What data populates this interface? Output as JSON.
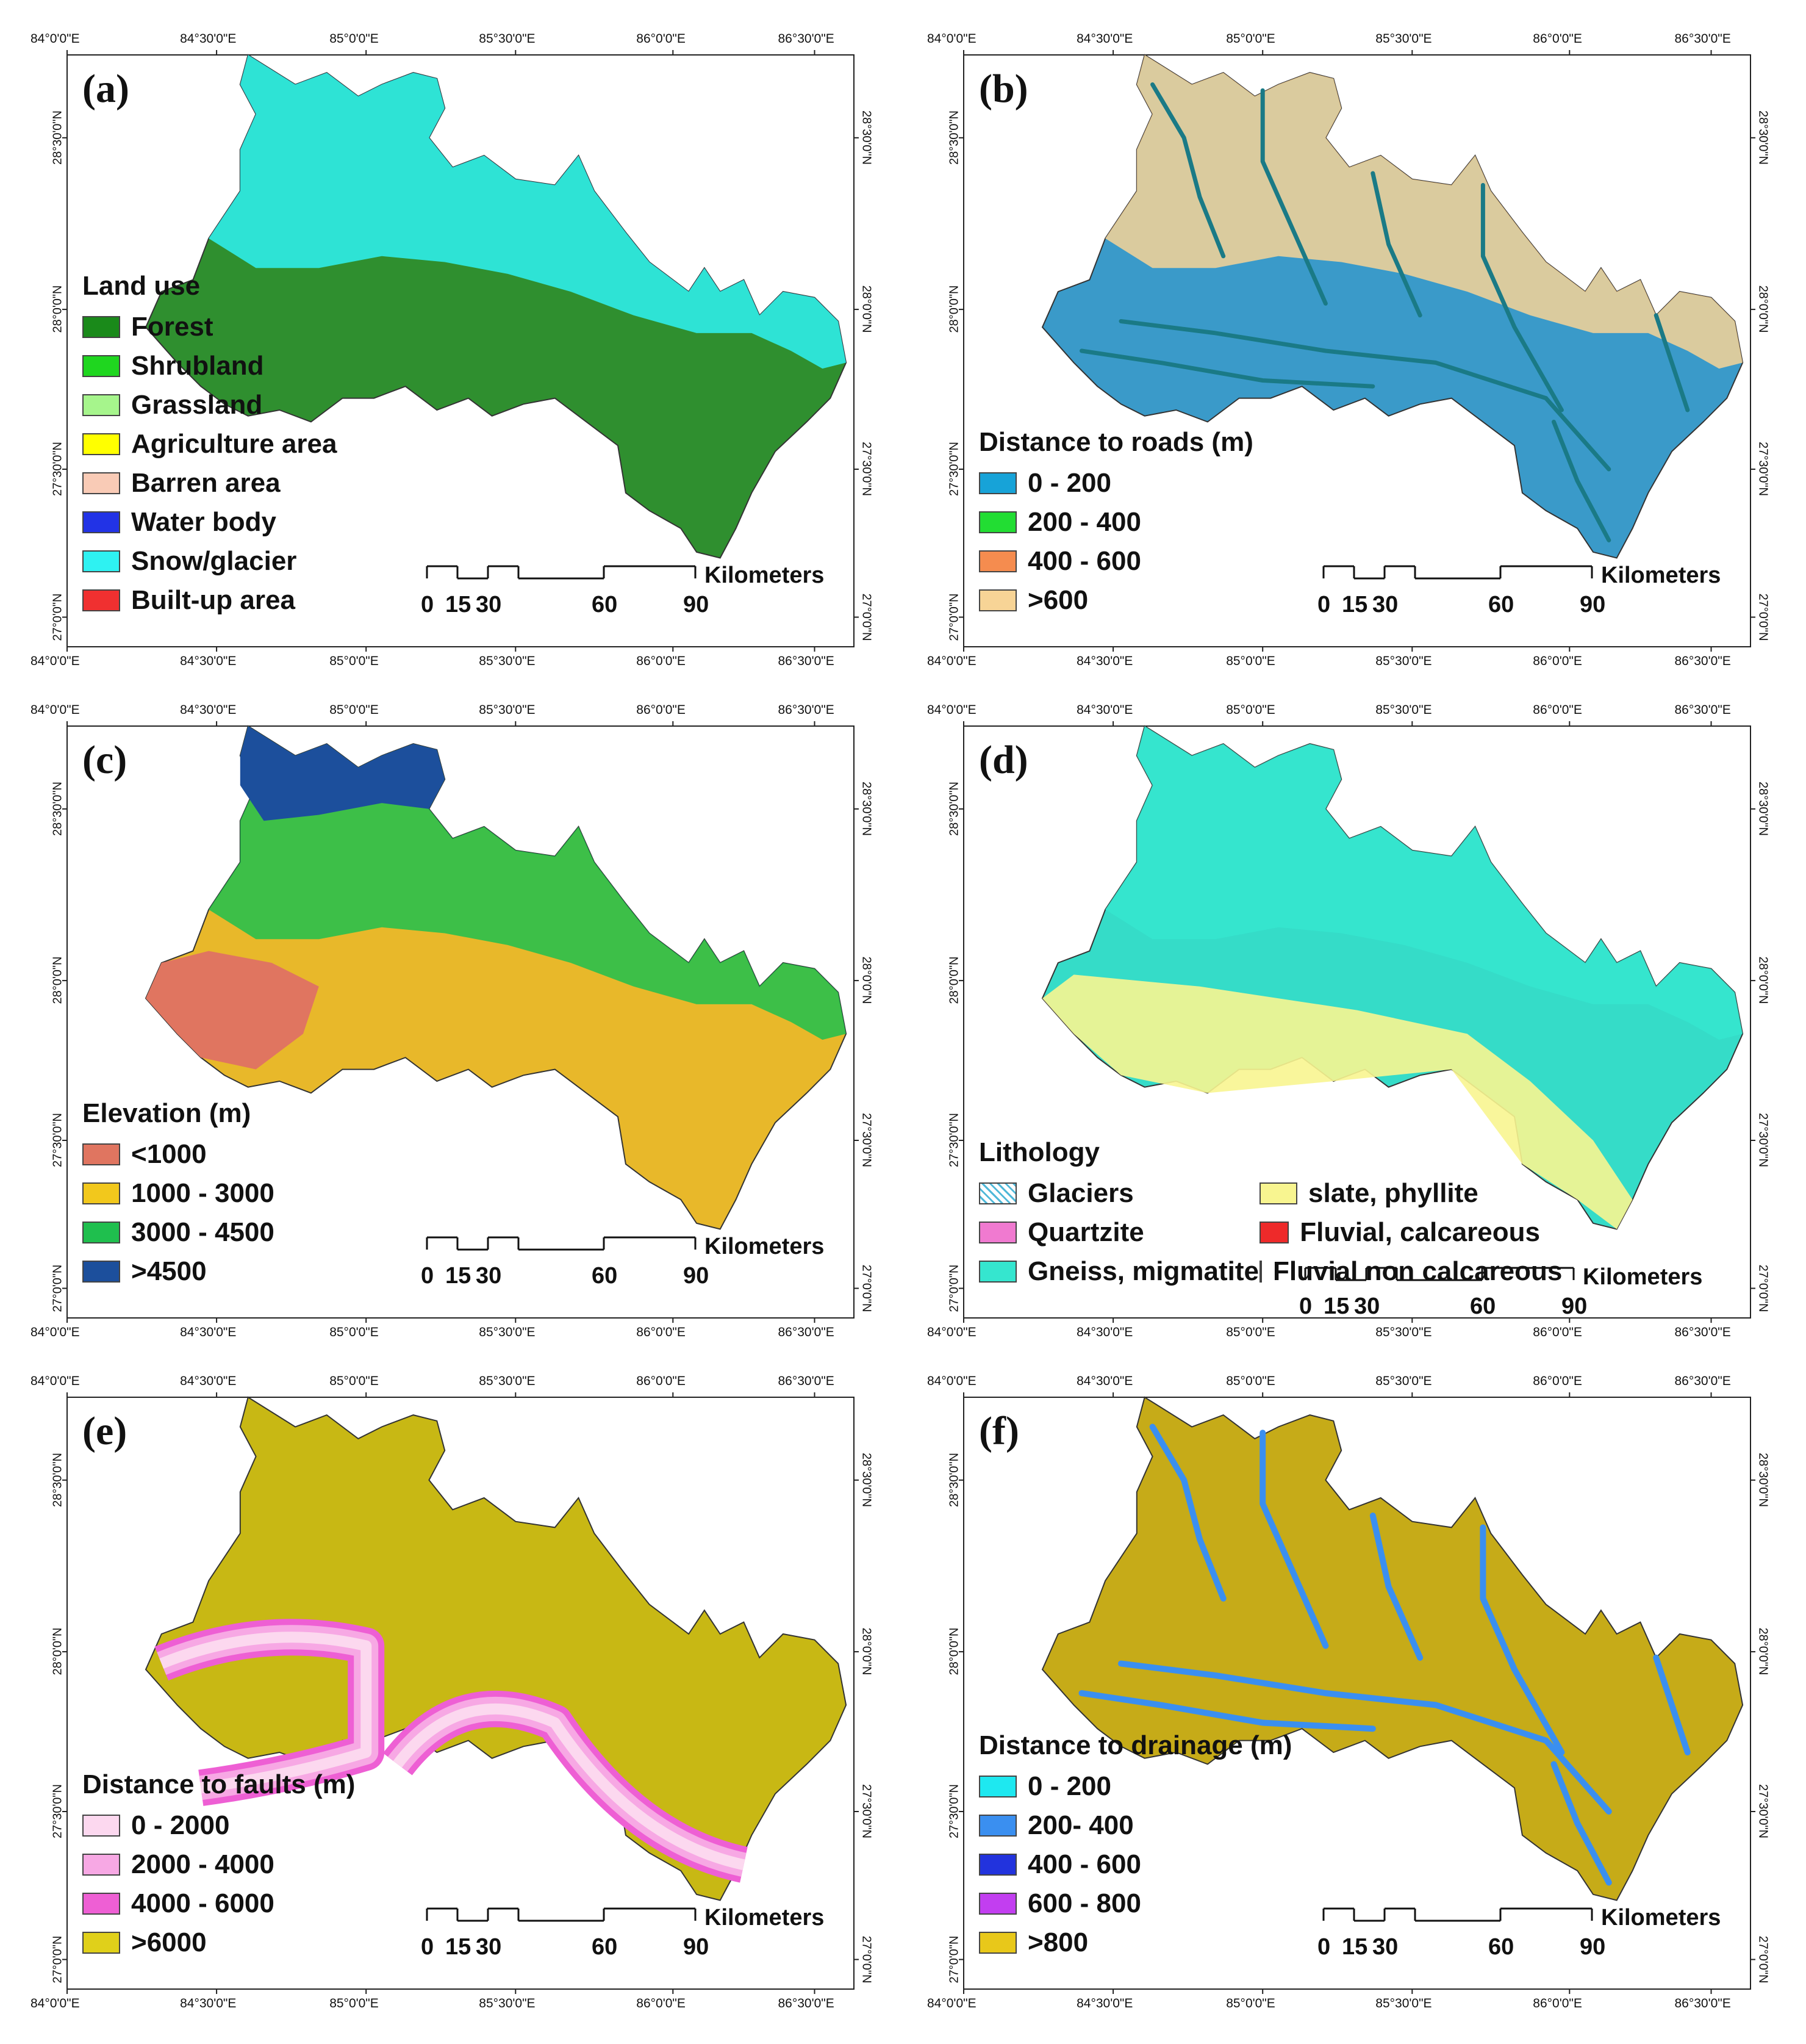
{
  "coordinates": {
    "lon": [
      "84°0'0\"E",
      "84°30'0\"E",
      "85°0'0\"E",
      "85°30'0\"E",
      "86°0'0\"E",
      "86°30'0\"E"
    ],
    "lat": [
      "27°0'0\"N",
      "27°30'0\"N",
      "28°0'0\"N",
      "28°30'0\"N"
    ]
  },
  "scalebar": {
    "ticks": [
      "0",
      "15",
      "30",
      "60",
      "90"
    ],
    "unit": "Kilometers"
  },
  "panels": [
    {
      "letter": "(a)",
      "legend_title": "Land use",
      "fill_color": "#2f8f2f",
      "legend": [
        {
          "label": "Forest",
          "color": "#1a8a1a"
        },
        {
          "label": "Shrubland",
          "color": "#1fd61f"
        },
        {
          "label": "Grassland",
          "color": "#a6f58c"
        },
        {
          "label": "Agriculture area",
          "color": "#ffff00"
        },
        {
          "label": "Barren area",
          "color": "#f9cbb6"
        },
        {
          "label": "Water body",
          "color": "#2233e6"
        },
        {
          "label": "Snow/glacier",
          "color": "#2ef2f2"
        },
        {
          "label": "Built-up area",
          "color": "#f03030"
        }
      ]
    },
    {
      "letter": "(b)",
      "legend_title": "Distance to roads (m)",
      "fill_color": "#3a9ac9",
      "legend": [
        {
          "label": "0 - 200",
          "color": "#17a3d8"
        },
        {
          "label": "200 - 400",
          "color": "#22dd33"
        },
        {
          "label": "400 - 600",
          "color": "#f58c4f"
        },
        {
          "label": ">600",
          "color": "#f7d496"
        }
      ]
    },
    {
      "letter": "(c)",
      "legend_title": "Elevation (m)",
      "fill_color": "#e8b82a",
      "legend": [
        {
          "label": "<1000",
          "color": "#e07560"
        },
        {
          "label": "1000 - 3000",
          "color": "#f2c81c"
        },
        {
          "label": "3000 - 4500",
          "color": "#1fbf4e"
        },
        {
          "label": ">4500",
          "color": "#1c4f9c"
        }
      ]
    },
    {
      "letter": "(d)",
      "legend_title": "Lithology",
      "fill_color": "#35dcc8",
      "legend": [
        {
          "label": "Glaciers",
          "color": "#ffffff"
        },
        {
          "label": "Quartzite",
          "color": "#f07ad0"
        },
        {
          "label": "Gneiss, migmatite",
          "color": "#35e6cf"
        },
        {
          "label": "slate, phyllite",
          "color": "#f8f590"
        },
        {
          "label": "Fluvial, calcareous",
          "color": "#ee2a2a"
        },
        {
          "label": "Fluvial non calcareous",
          "color": "#8a8a8a"
        }
      ]
    },
    {
      "letter": "(e)",
      "legend_title": "Distance to faults (m)",
      "fill_color": "#c8b814",
      "legend": [
        {
          "label": "0 - 2000",
          "color": "#fcd8ef"
        },
        {
          "label": "2000 - 4000",
          "color": "#f7a8e4"
        },
        {
          "label": "4000 - 6000",
          "color": "#ee5fd4"
        },
        {
          "label": ">6000",
          "color": "#e0d01a"
        }
      ]
    },
    {
      "letter": "(f)",
      "legend_title": "Distance to drainage (m)",
      "fill_color": "#c6ab18",
      "legend": [
        {
          "label": "0 - 200",
          "color": "#1ee8f0"
        },
        {
          "label": "200- 400",
          "color": "#3a8ff0"
        },
        {
          "label": "400 - 600",
          "color": "#2233dd"
        },
        {
          "label": "600 - 800",
          "color": "#c23ef0"
        },
        {
          "label": ">800",
          "color": "#e8c81a"
        }
      ]
    }
  ]
}
